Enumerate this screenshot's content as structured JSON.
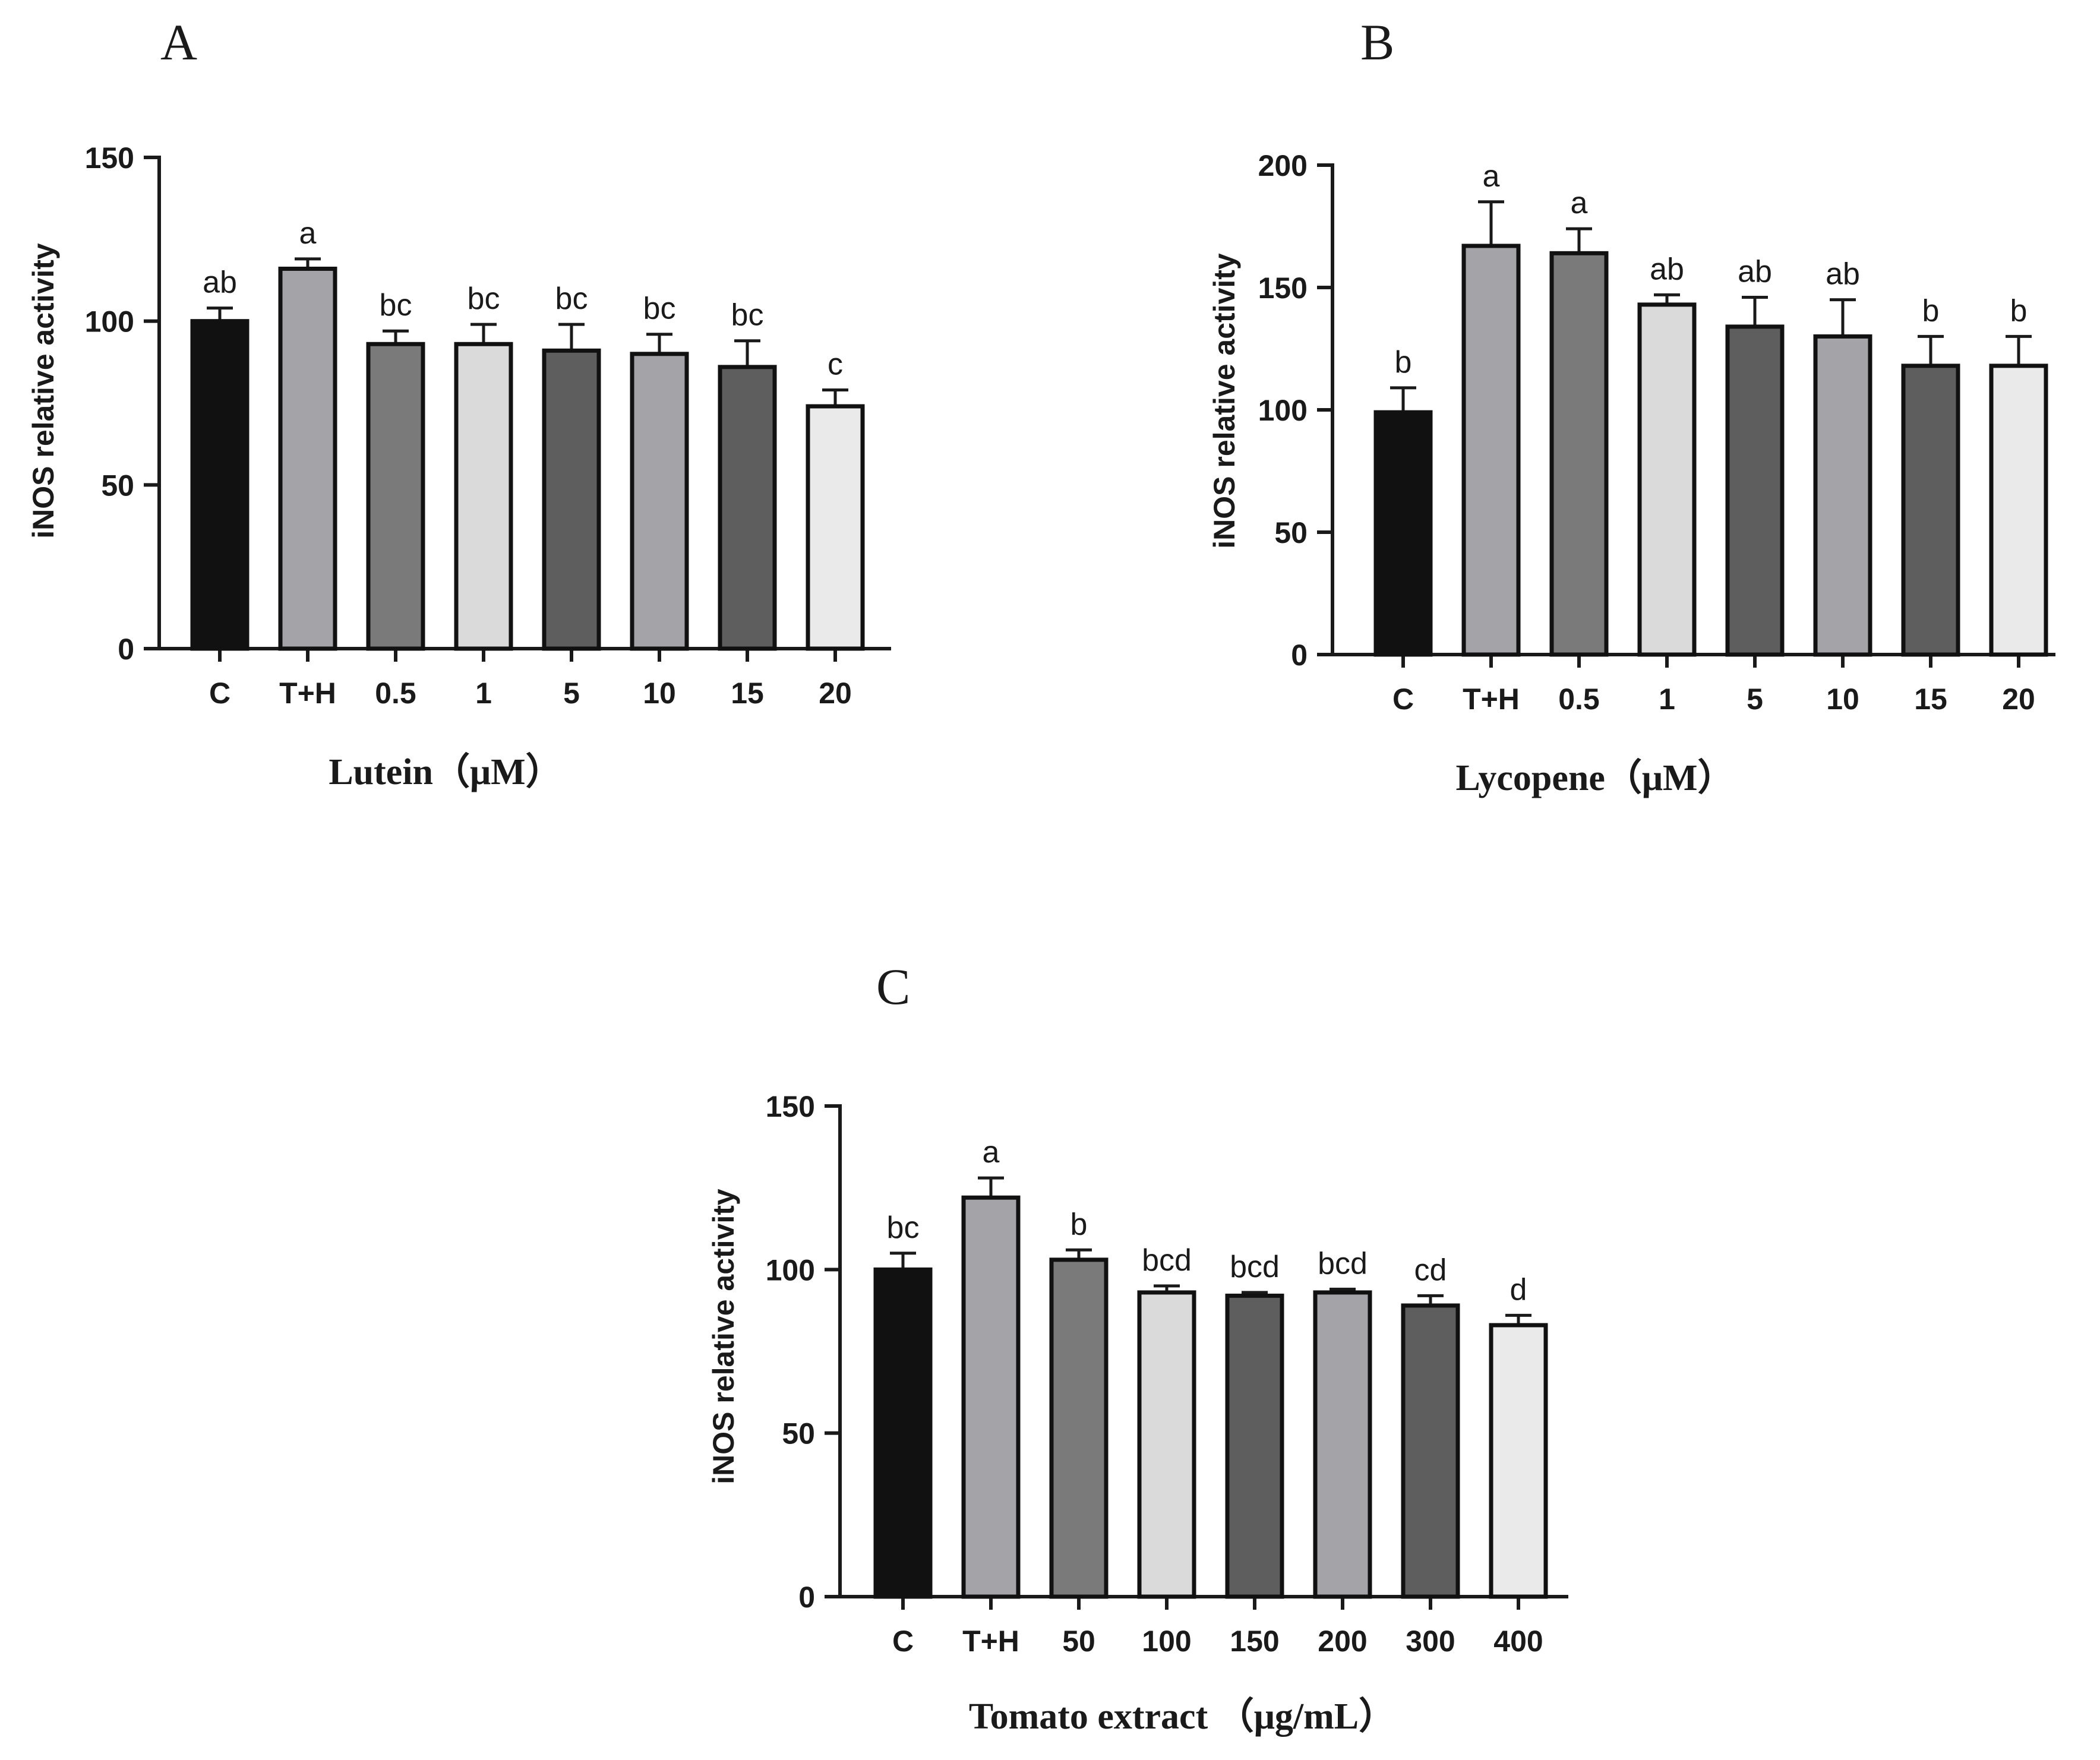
{
  "chart_data": [
    {
      "type": "bar",
      "panel": "A",
      "categories": [
        "C",
        "T+H",
        "0.5",
        "1",
        "5",
        "10",
        "15",
        "20"
      ],
      "values": [
        100,
        116,
        93,
        93,
        91,
        90,
        86,
        74
      ],
      "errors": [
        4,
        3,
        4,
        6,
        8,
        6,
        8,
        5
      ],
      "significance": [
        "ab",
        "a",
        "bc",
        "bc",
        "bc",
        "bc",
        "bc",
        "c"
      ],
      "ylabel": "iNOS relative activity",
      "xlabel": "Lutein（μM）",
      "ylim": [
        0,
        150
      ],
      "yticks": [
        "0",
        "50",
        "100",
        "150"
      ],
      "bar_colors": [
        "#111111",
        "#a4a4a8",
        "#7a7a7a",
        "#dadada",
        "#5e5e5e",
        "#a4a4a8",
        "#5e5e5e",
        "#eaeaea"
      ]
    },
    {
      "type": "bar",
      "panel": "B",
      "categories": [
        "C",
        "T+H",
        "0.5",
        "1",
        "5",
        "10",
        "15",
        "20"
      ],
      "values": [
        99,
        167,
        164,
        143,
        134,
        130,
        118,
        118
      ],
      "errors": [
        10,
        18,
        10,
        4,
        12,
        15,
        12,
        12
      ],
      "significance": [
        "b",
        "a",
        "a",
        "ab",
        "ab",
        "ab",
        "b",
        "b"
      ],
      "ylabel": "iNOS relative activity",
      "xlabel": "Lycopene（μM）",
      "ylim": [
        0,
        200
      ],
      "yticks": [
        "0",
        "50",
        "100",
        "150",
        "200"
      ],
      "bar_colors": [
        "#111111",
        "#a4a4a8",
        "#7a7a7a",
        "#dadada",
        "#5e5e5e",
        "#a4a4a8",
        "#5e5e5e",
        "#eaeaea"
      ]
    },
    {
      "type": "bar",
      "panel": "C",
      "categories": [
        "C",
        "T+H",
        "50",
        "100",
        "150",
        "200",
        "300",
        "400"
      ],
      "values": [
        100,
        122,
        103,
        93,
        92,
        93,
        89,
        83
      ],
      "errors": [
        5,
        6,
        3,
        2,
        1,
        1,
        3,
        3
      ],
      "significance": [
        "bc",
        "a",
        "b",
        "bcd",
        "bcd",
        "bcd",
        "cd",
        "d"
      ],
      "ylabel": "iNOS relative activity",
      "xlabel": "Tomato extract （μg/mL）",
      "ylim": [
        0,
        150
      ],
      "yticks": [
        "0",
        "50",
        "100",
        "150"
      ],
      "bar_colors": [
        "#111111",
        "#a4a4a8",
        "#7a7a7a",
        "#dadada",
        "#5e5e5e",
        "#a4a4a8",
        "#5e5e5e",
        "#eaeaea"
      ]
    }
  ]
}
